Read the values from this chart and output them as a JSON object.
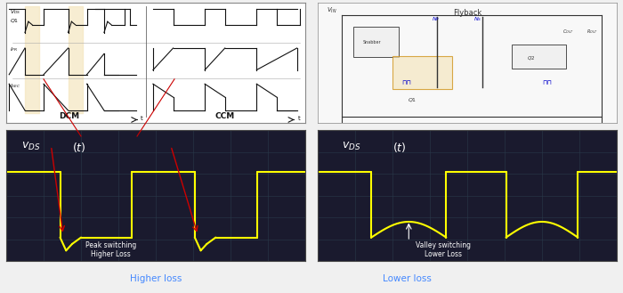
{
  "fig_width": 7.0,
  "fig_height": 3.29,
  "dpi": 100,
  "osc_bg_color": "#1a1a2e",
  "osc_grid_color": "#2a3a4a",
  "yellow_color": "#ffff00",
  "white_color": "#ffffff",
  "red_color": "#cc0000",
  "cyan_color": "#00aaff",
  "label_left": "Higher loss",
  "label_right": "Lower loss",
  "label_left_color": "#4488ff",
  "label_right_color": "#4488ff",
  "ann_left": "Peak switching\nHigher Loss",
  "ann_right": "Valley switching\nLower Loss",
  "title_text": "$v_{DS}$ (t)",
  "top_panel_bg": "#ffffff",
  "top_panel_border": "#888888",
  "dcm_label": "DCM",
  "ccm_label": "CCM"
}
